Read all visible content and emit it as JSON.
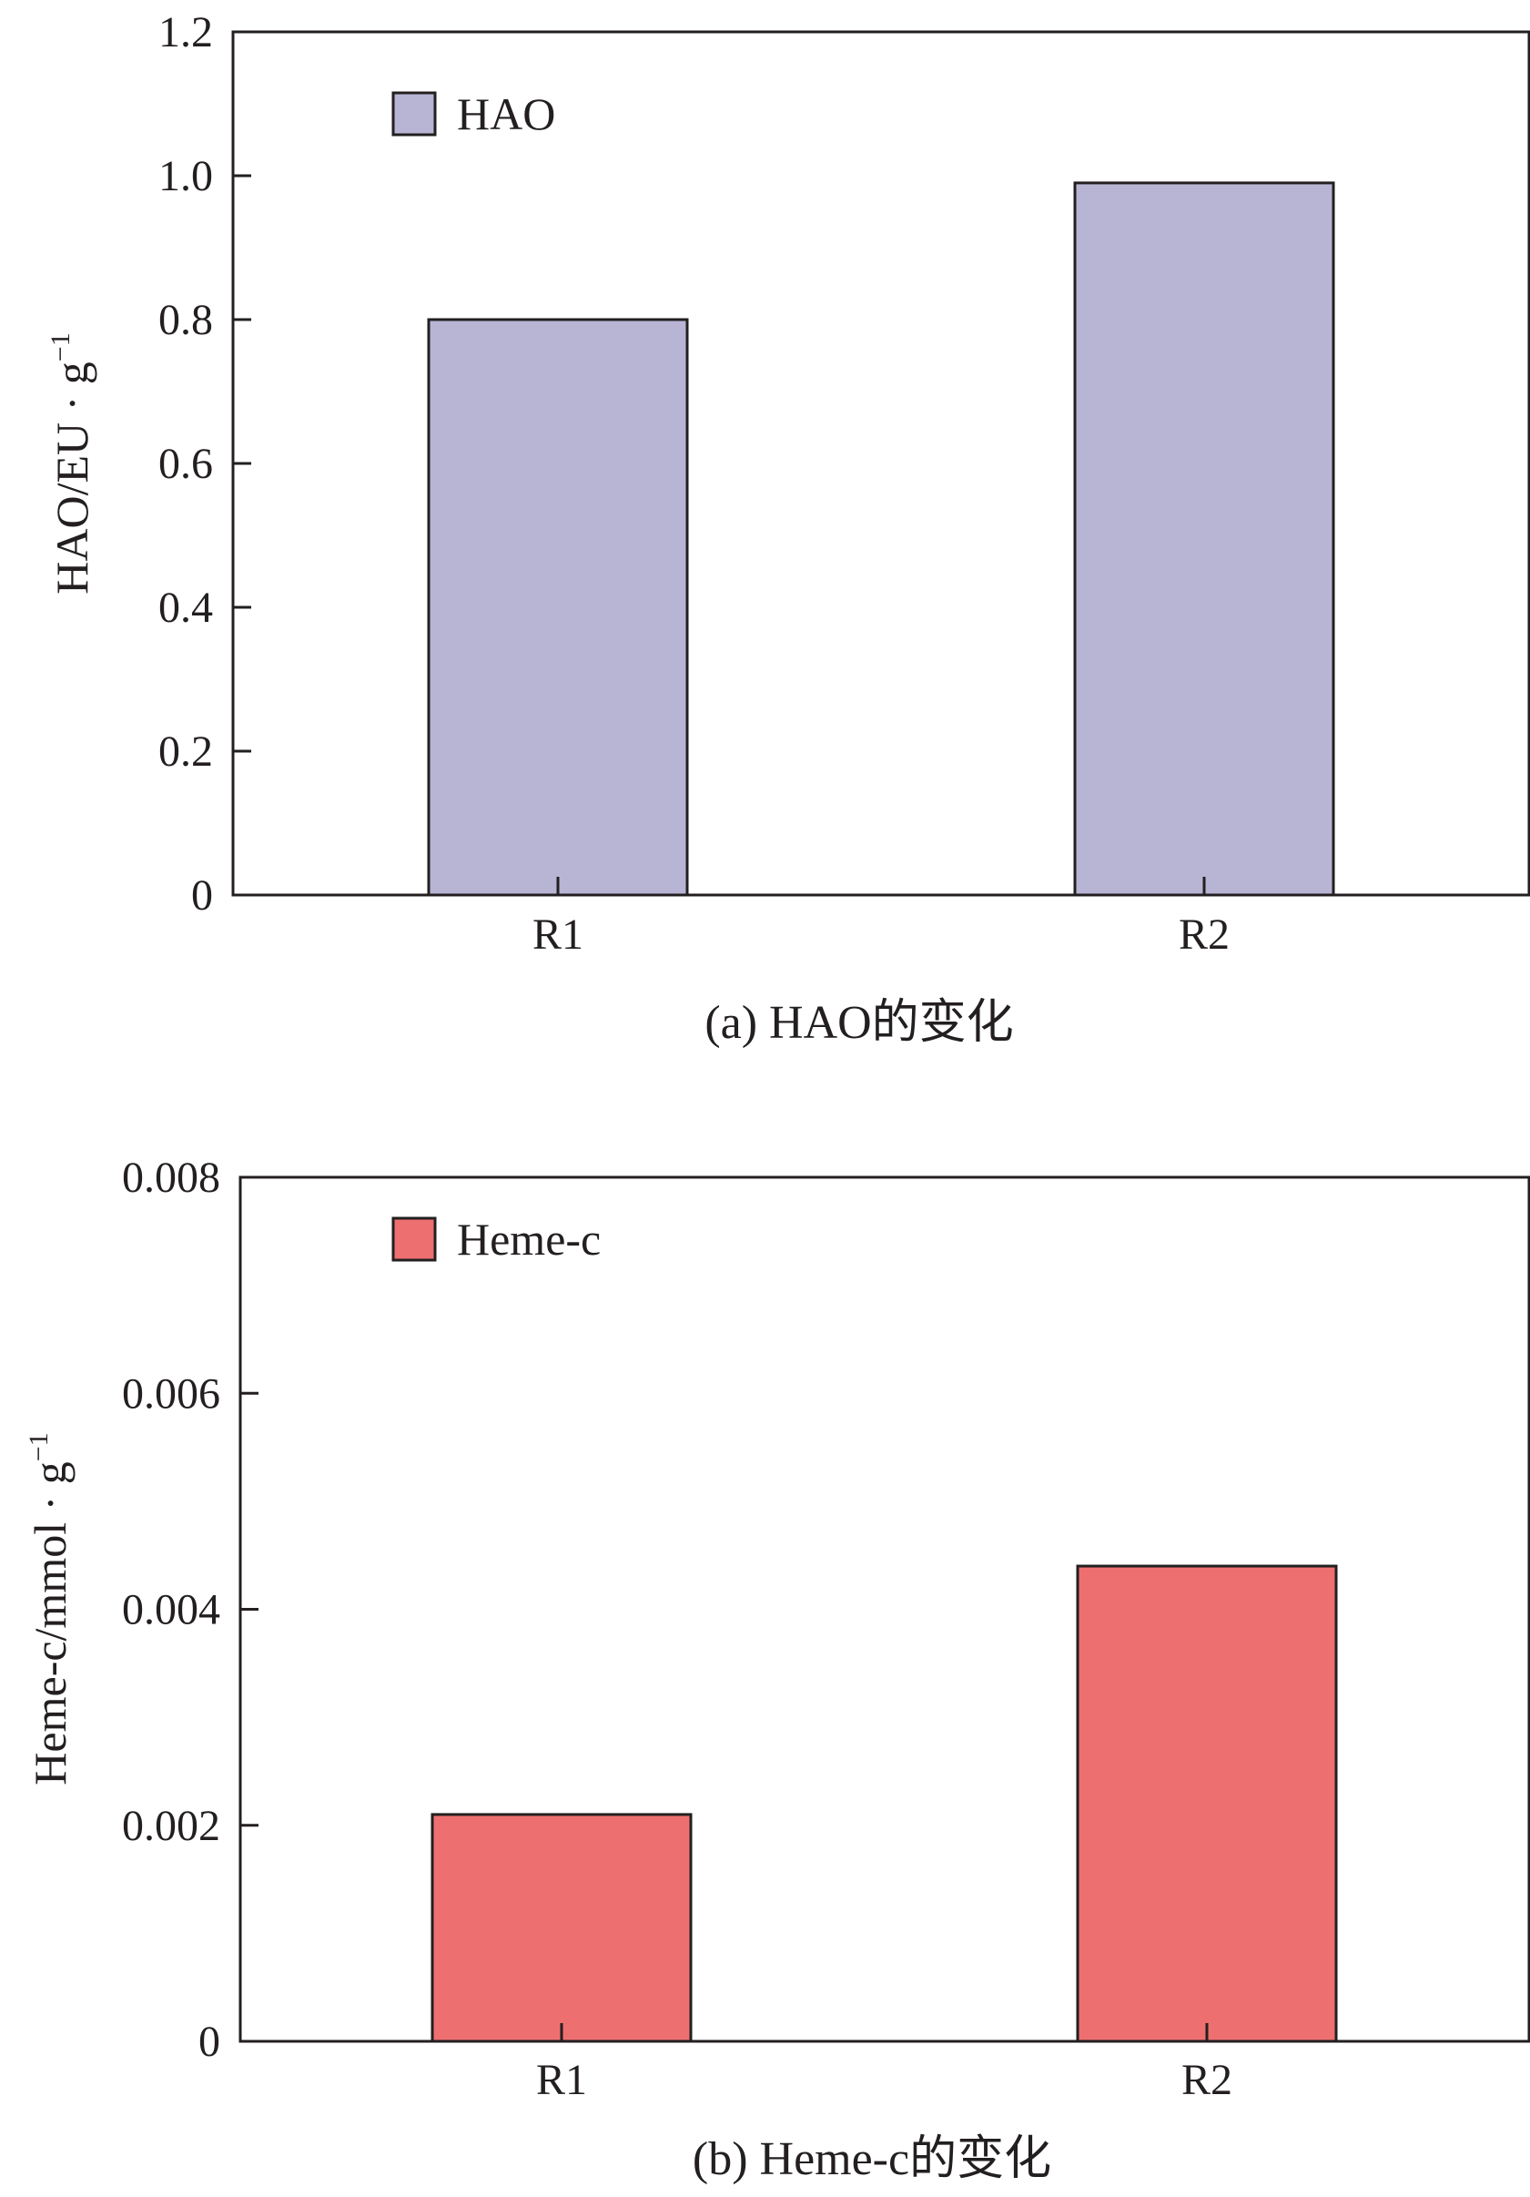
{
  "chart_data": [
    {
      "type": "bar",
      "categories": [
        "R1",
        "R2"
      ],
      "series": [
        {
          "name": "HAO",
          "values": [
            0.8,
            0.99
          ],
          "color": "#b7b4d4"
        }
      ],
      "ylabel": "HAO/EU · g",
      "ylabel_sup": "−1",
      "ylim": [
        0,
        1.2
      ],
      "yticks": [
        "0",
        "0.2",
        "0.4",
        "0.6",
        "0.8",
        "1.0",
        "1.2"
      ],
      "caption": "(a) HAO的变化",
      "grid": false,
      "legend": "top-left"
    },
    {
      "type": "bar",
      "categories": [
        "R1",
        "R2"
      ],
      "series": [
        {
          "name": "Heme-c",
          "values": [
            0.0021,
            0.0044
          ],
          "color": "#ee6f6f"
        }
      ],
      "ylabel": "Heme-c/mmol · g",
      "ylabel_sup": "−1",
      "ylim": [
        0,
        0.008
      ],
      "yticks": [
        "0",
        "0.002",
        "0.004",
        "0.006",
        "0.008"
      ],
      "caption": "(b) Heme-c的变化",
      "grid": false,
      "legend": "top-left"
    }
  ]
}
